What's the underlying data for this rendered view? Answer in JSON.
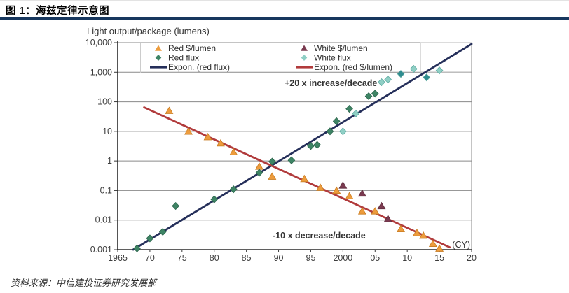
{
  "header": {
    "title": "图 1：海兹定律示意图",
    "rule_color": "#17375e"
  },
  "source_note": "资料来源：中信建投证券研究发展部",
  "chart_data": {
    "type": "scatter",
    "title": "Light output/package (lumens)",
    "y_axis": {
      "scale": "log",
      "range": [
        0.001,
        10000
      ],
      "ticks": [
        {
          "label": "10,000",
          "value": 10000
        },
        {
          "label": "1,000",
          "value": 1000
        },
        {
          "label": "100",
          "value": 100
        },
        {
          "label": "10",
          "value": 10
        },
        {
          "label": "1",
          "value": 1
        },
        {
          "label": "0.1",
          "value": 0.1
        },
        {
          "label": "0.01",
          "value": 0.01
        },
        {
          "label": "0.001",
          "value": 0.001
        }
      ]
    },
    "x_axis": {
      "label": "(CY)",
      "range": [
        1965,
        2020
      ],
      "ticks": [
        {
          "label": "1965",
          "year": 1965
        },
        {
          "label": "70",
          "year": 1970
        },
        {
          "label": "75",
          "year": 1975
        },
        {
          "label": "80",
          "year": 1980
        },
        {
          "label": "85",
          "year": 1985
        },
        {
          "label": "90",
          "year": 1990
        },
        {
          "label": "95",
          "year": 1995
        },
        {
          "label": "2000",
          "year": 2000
        },
        {
          "label": "05",
          "year": 2005
        },
        {
          "label": "10",
          "year": 2010
        },
        {
          "label": "15",
          "year": 2015
        },
        {
          "label": "20",
          "year": 2020
        }
      ]
    },
    "annotations": {
      "increase": "+20 x increase/decade",
      "decrease": "-10 x decrease/decade"
    },
    "legend": {
      "items": [
        {
          "label": "Red $/lumen",
          "marker": "triangle",
          "color": "#ED9C3D"
        },
        {
          "label": "Red flux",
          "marker": "diamond",
          "color": "#3E8465"
        },
        {
          "label": "Expon. (red flux)",
          "marker": "line",
          "color": "#252F5A"
        },
        {
          "label": "White $/lumen",
          "marker": "triangle",
          "color": "#7A3A50"
        },
        {
          "label": "White flux",
          "marker": "diamond",
          "color": "#8FCFC5"
        },
        {
          "label": "Expon. (red $/lumen)",
          "marker": "line",
          "color": "#B13B3C"
        }
      ]
    },
    "series": [
      {
        "name": "Red $/lumen",
        "marker": "triangle",
        "color": "#ED9C3D",
        "stroke": "#C87B20",
        "points": [
          [
            1973,
            50
          ],
          [
            1976,
            10
          ],
          [
            1979,
            6.5
          ],
          [
            1981,
            4
          ],
          [
            1983,
            2
          ],
          [
            1987,
            0.65
          ],
          [
            1989,
            0.3
          ],
          [
            1994,
            0.25
          ],
          [
            1996.5,
            0.125
          ],
          [
            1999,
            0.1
          ],
          [
            2001,
            0.065
          ],
          [
            2003,
            0.02
          ],
          [
            2005,
            0.02
          ],
          [
            2009,
            0.005
          ],
          [
            2011.5,
            0.0037
          ],
          [
            2012.5,
            0.003
          ],
          [
            2014,
            0.0016
          ],
          [
            2015,
            0.0011
          ]
        ]
      },
      {
        "name": "Red flux",
        "marker": "diamond",
        "color": "#3E8465",
        "stroke": "#2B654B",
        "points": [
          [
            1968,
            0.0011
          ],
          [
            1970,
            0.0024
          ],
          [
            1972,
            0.004
          ],
          [
            1974,
            0.03
          ],
          [
            1980,
            0.05
          ],
          [
            1983,
            0.11
          ],
          [
            1987,
            0.4
          ],
          [
            1989,
            0.95
          ],
          [
            1992,
            1.05
          ],
          [
            1995,
            3.2
          ],
          [
            1996,
            3.5
          ],
          [
            1998,
            10
          ],
          [
            1999,
            22
          ],
          [
            2001,
            58
          ],
          [
            2004,
            155
          ],
          [
            2005,
            190
          ]
        ]
      },
      {
        "name": "White $/lumen",
        "marker": "triangle",
        "color": "#7A3A50",
        "stroke": "#5E2B3C",
        "points": [
          [
            2000,
            0.15
          ],
          [
            2003,
            0.08
          ],
          [
            2006,
            0.03
          ],
          [
            2007,
            0.011
          ]
        ]
      },
      {
        "name": "White flux",
        "marker": "diamond",
        "color": "#8FCFC5",
        "stroke": "#5BA99F",
        "dark_color": "#2F8C90",
        "points": [
          [
            2000,
            10
          ],
          [
            2002,
            40
          ],
          [
            2006,
            460
          ],
          [
            2007,
            570
          ],
          [
            2009,
            880,
            "dark"
          ],
          [
            2011,
            1300
          ],
          [
            2013,
            670,
            "dark"
          ],
          [
            2015,
            1150
          ]
        ]
      }
    ],
    "trendlines": [
      {
        "name": "Expon. (red flux)",
        "color": "#252F5A",
        "x1": 1967.4,
        "v1": 0.001,
        "x2": 2020,
        "v2": 9000,
        "rate": "+20x/decade"
      },
      {
        "name": "Expon. (red $/lumen)",
        "color": "#B13B3C",
        "x1": 1969.1,
        "v1": 65,
        "x2": 2016.6,
        "v2": 0.0012,
        "rate": "-10x/decade"
      }
    ]
  }
}
